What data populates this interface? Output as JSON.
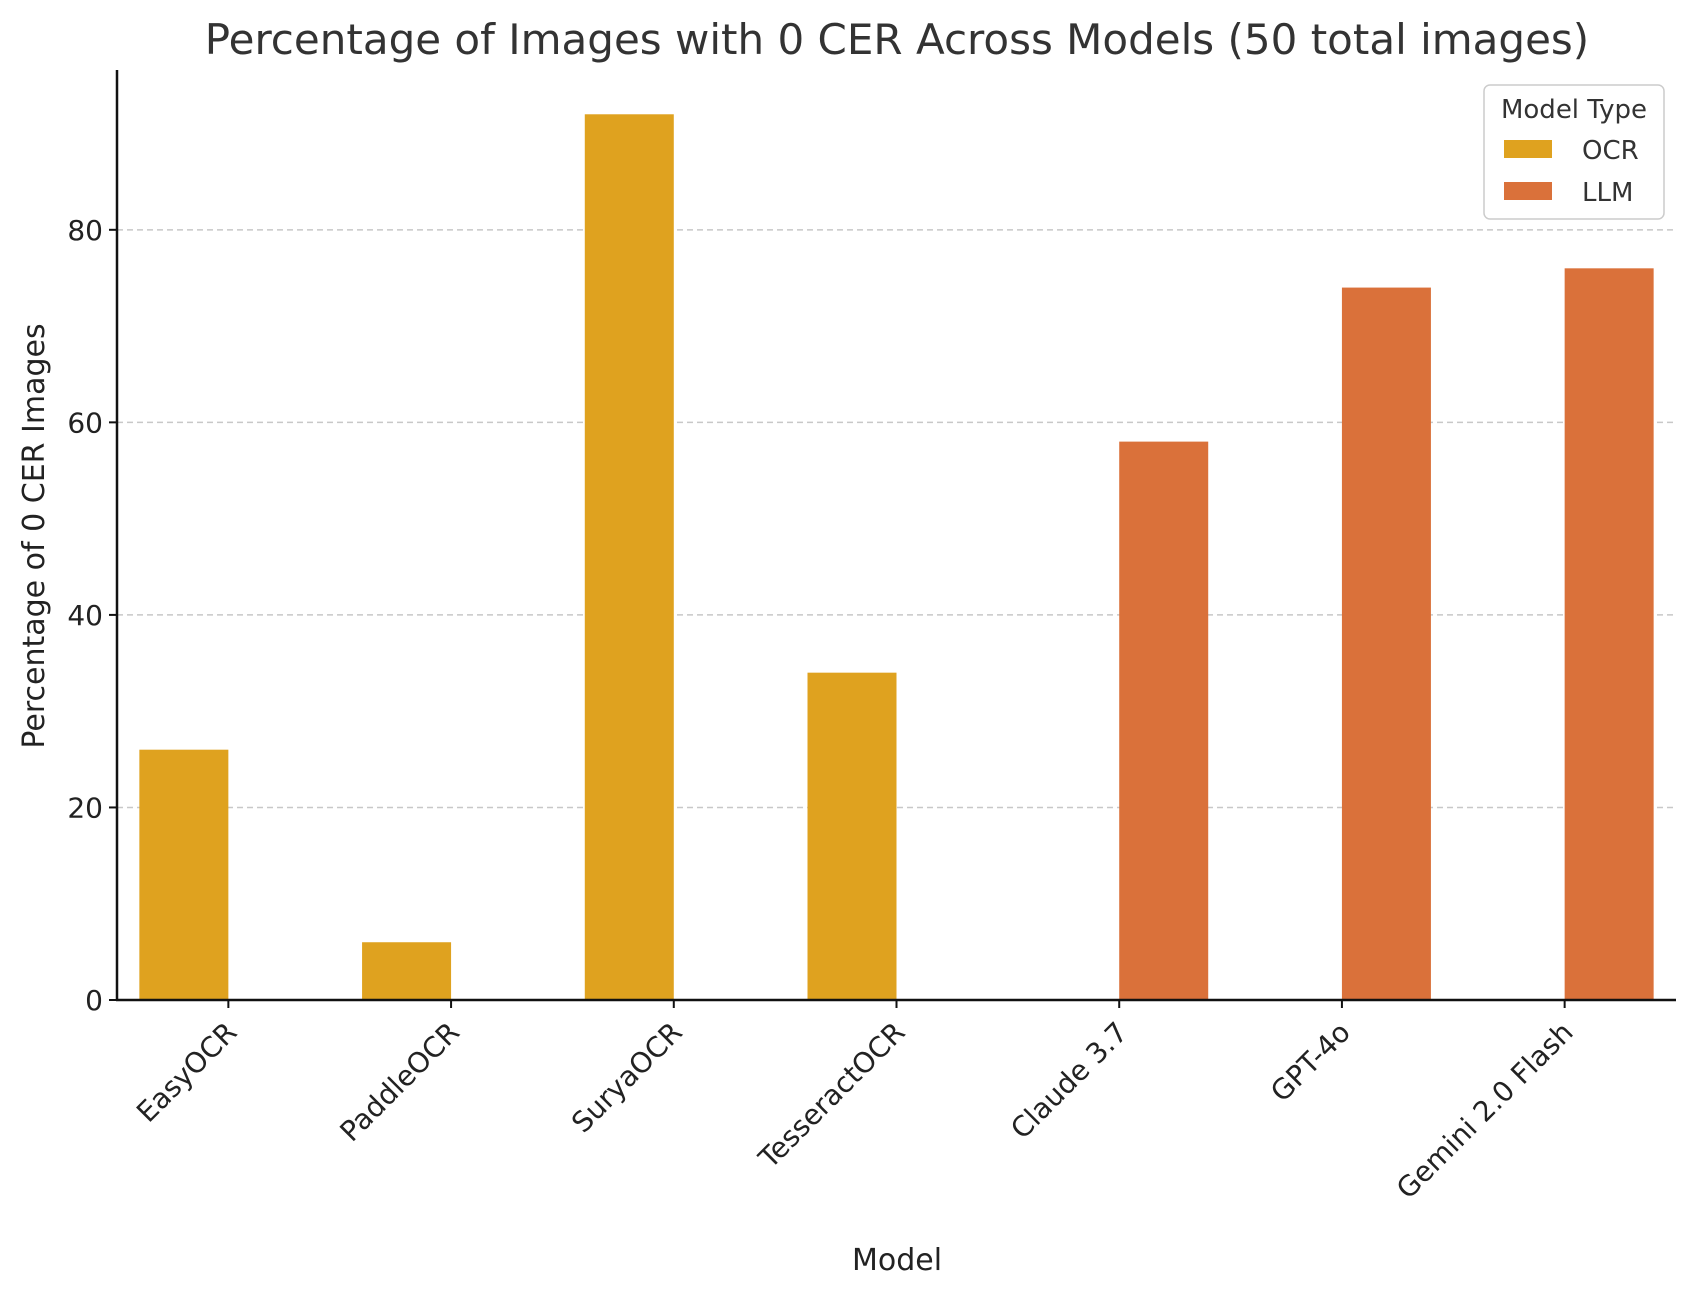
{
  "chart_data": {
    "type": "bar",
    "title": "Percentage of Images with 0 CER Across Models (50 total images)",
    "xlabel": "Model",
    "ylabel": "Percentage of 0 CER Images",
    "categories": [
      "EasyOCR",
      "PaddleOCR",
      "SuryaOCR",
      "TesseractOCR",
      "Claude 3.7",
      "GPT-4o",
      "Gemini 2.0 Flash"
    ],
    "series": [
      {
        "name": "OCR",
        "color": "#DFA21F",
        "values": [
          26,
          6,
          92,
          34,
          null,
          null,
          null
        ]
      },
      {
        "name": "LLM",
        "color": "#DA713A",
        "values": [
          null,
          null,
          null,
          null,
          58,
          74,
          76
        ]
      }
    ],
    "ylim": [
      0,
      96.6
    ],
    "yticks": [
      0,
      20,
      40,
      60,
      80
    ],
    "grid": "y-dashed",
    "legend": {
      "title": "Model Type",
      "position": "top-right"
    }
  }
}
